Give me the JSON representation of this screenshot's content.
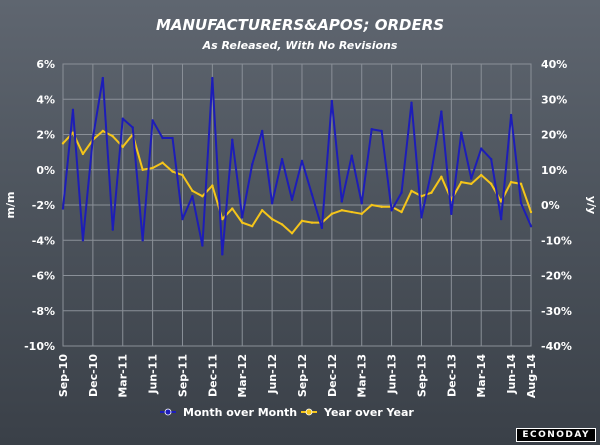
{
  "colors": {
    "mom": "#1d1db8",
    "yoy": "#f5c51a",
    "grid": "#8a9098",
    "text": "#ffffff"
  },
  "watermark": "ECONODAY",
  "chart_data": {
    "type": "line",
    "title": "MANUFACTURERS&APOS; ORDERS",
    "subtitle": "As Released, With No Revisions",
    "ylabel_left": "m/m",
    "ylabel_right": "y/y",
    "left_axis": {
      "range": [
        -10,
        6
      ],
      "ticks": [
        6,
        4,
        2,
        0,
        -2,
        -4,
        -6,
        -8,
        -10
      ],
      "tick_labels": [
        "6%",
        "4%",
        "2%",
        "0%",
        "-2%",
        "-4%",
        "-6%",
        "-8%",
        "-10%"
      ]
    },
    "right_axis": {
      "range": [
        -40,
        40
      ],
      "ticks": [
        40,
        30,
        20,
        10,
        0,
        -10,
        -20,
        -30,
        -40
      ],
      "tick_labels": [
        "40%",
        "30%",
        "20%",
        "10%",
        "0%",
        "-10%",
        "-20%",
        "-30%",
        "-40%"
      ]
    },
    "x_tick_labels": [
      {
        "label": "Sep-10",
        "index": 0
      },
      {
        "label": "Dec-10",
        "index": 3
      },
      {
        "label": "Mar-11",
        "index": 6
      },
      {
        "label": "Jun-11",
        "index": 9
      },
      {
        "label": "Sep-11",
        "index": 12
      },
      {
        "label": "Dec-11",
        "index": 15
      },
      {
        "label": "Mar-12",
        "index": 18
      },
      {
        "label": "Jun-12",
        "index": 21
      },
      {
        "label": "Sep-12",
        "index": 24
      },
      {
        "label": "Dec-12",
        "index": 27
      },
      {
        "label": "Mar-13",
        "index": 30
      },
      {
        "label": "Jun-13",
        "index": 33
      },
      {
        "label": "Sep-13",
        "index": 36
      },
      {
        "label": "Dec-13",
        "index": 39
      },
      {
        "label": "Mar-14",
        "index": 42
      },
      {
        "label": "Jun-14",
        "index": 45
      },
      {
        "label": "Aug-14",
        "index": 47
      }
    ],
    "series": [
      {
        "name": "Month over Month",
        "axis": "left",
        "values": [
          -2.2,
          3.4,
          -4.0,
          1.8,
          5.2,
          -3.4,
          2.9,
          2.4,
          -4.0,
          2.8,
          1.8,
          1.8,
          -2.8,
          -1.5,
          -4.3,
          5.2,
          -4.8,
          1.7,
          -2.7,
          0.3,
          2.2,
          -1.9,
          0.6,
          -1.7,
          0.5,
          -1.4,
          -3.3,
          3.9,
          -1.8,
          0.8,
          -1.9,
          2.3,
          2.2,
          -2.3,
          -1.3,
          3.8,
          -2.7,
          -0.1,
          3.3,
          -2.5,
          2.1,
          -0.5,
          1.2,
          0.6,
          -2.8,
          3.1,
          -1.9,
          -3.2
        ]
      },
      {
        "name": "Year over Year",
        "axis": "right",
        "values": [
          17.5,
          20.5,
          14.5,
          18.5,
          21.0,
          19.5,
          16.5,
          20.0,
          10.0,
          10.5,
          12.0,
          9.5,
          8.5,
          4.0,
          2.5,
          5.5,
          -4.0,
          -1.0,
          -5.0,
          -6.0,
          -1.5,
          -4.0,
          -5.5,
          -8.0,
          -4.5,
          -5.0,
          -5.0,
          -2.5,
          -1.5,
          -2.0,
          -2.5,
          0.0,
          -0.5,
          -0.5,
          -2.0,
          4.0,
          2.5,
          3.5,
          8.0,
          1.5,
          6.5,
          6.0,
          8.5,
          6.0,
          1.0,
          6.5,
          6.0,
          -2.0
        ]
      }
    ],
    "legend_position": "bottom"
  }
}
